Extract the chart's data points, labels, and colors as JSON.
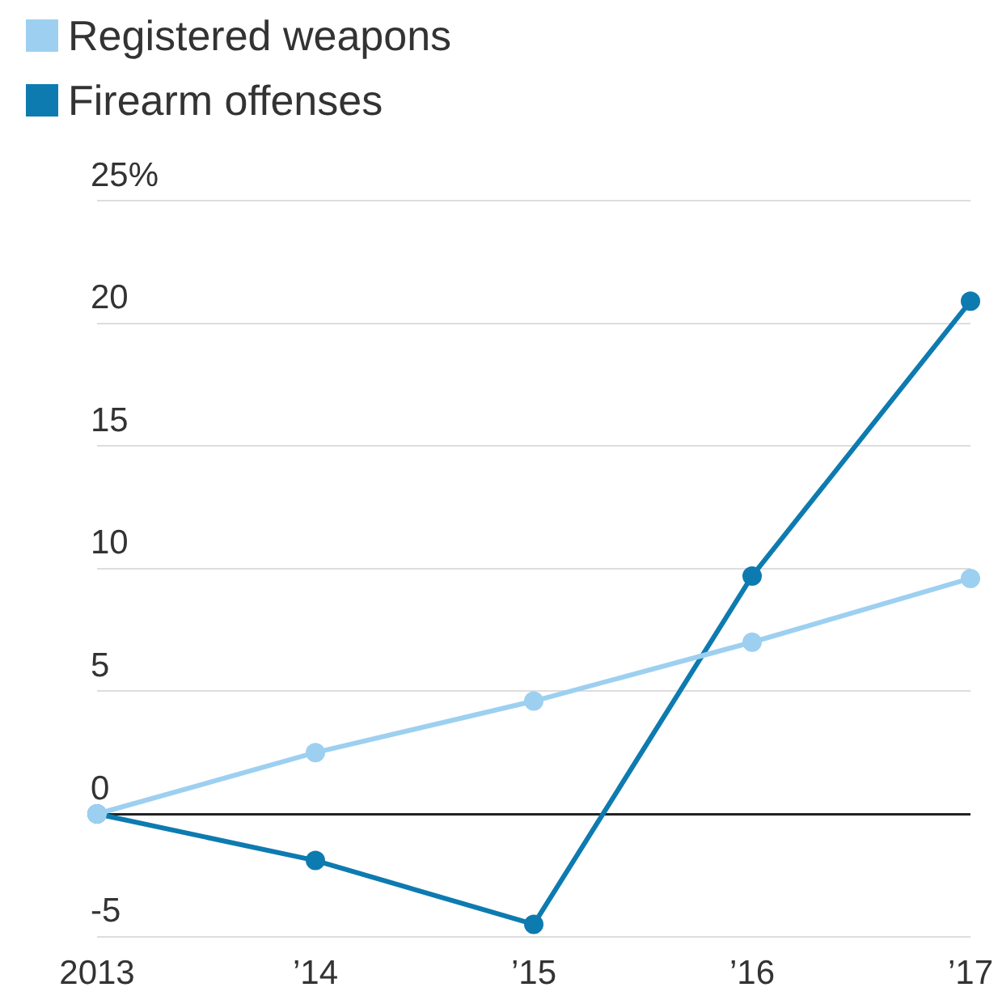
{
  "chart_data": {
    "type": "line",
    "categories": [
      "2013",
      "’14",
      "’15",
      "’16",
      "’17"
    ],
    "series": [
      {
        "name": "Registered weapons",
        "color": "#9dd0f0",
        "values": [
          0,
          2.5,
          4.6,
          7.0,
          9.6
        ]
      },
      {
        "name": "Firearm offenses",
        "color": "#0d7bb0",
        "values": [
          0,
          -1.9,
          -4.5,
          9.7,
          20.9
        ]
      }
    ],
    "ylim": [
      -5,
      25
    ],
    "yticks": [
      {
        "value": -5,
        "label": "-5"
      },
      0,
      5,
      10,
      15,
      {
        "value": 20,
        "label": "20"
      },
      {
        "value": 25,
        "label": "25%"
      }
    ],
    "grid": "y",
    "legend": "top left",
    "marker": "circle",
    "line_style": "solid"
  }
}
